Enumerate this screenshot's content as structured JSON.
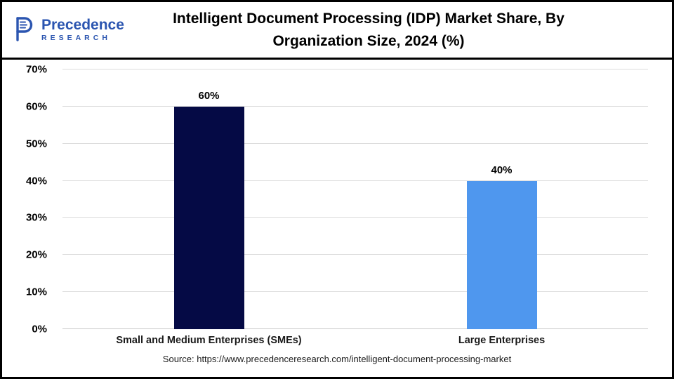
{
  "logo": {
    "line1": "Precedence",
    "line2": "RESEARCH"
  },
  "header": {
    "title": "Intelligent Document Processing (IDP) Market Share, By Organization Size, 2024 (%)"
  },
  "chart_data": {
    "type": "bar",
    "title": "Intelligent Document Processing (IDP) Market Share, By Organization Size, 2024 (%)",
    "categories": [
      "Small and Medium Enterprises (SMEs)",
      "Large Enterprises"
    ],
    "values": [
      60,
      40
    ],
    "value_labels": [
      "60%",
      "40%"
    ],
    "bar_colors": [
      "#050a45",
      "#4f97ee"
    ],
    "xlabel": "",
    "ylabel": "",
    "ylim": [
      0,
      70
    ],
    "ytick_step": 10,
    "ytick_suffix": "%",
    "grid": true,
    "legend": false
  },
  "footer": {
    "source": "Source: https://www.precedenceresearch.com/intelligent-document-processing-market"
  },
  "colors": {
    "logo_blue": "#2b55b0",
    "border": "#000000",
    "gridline": "#dcdcdc"
  }
}
